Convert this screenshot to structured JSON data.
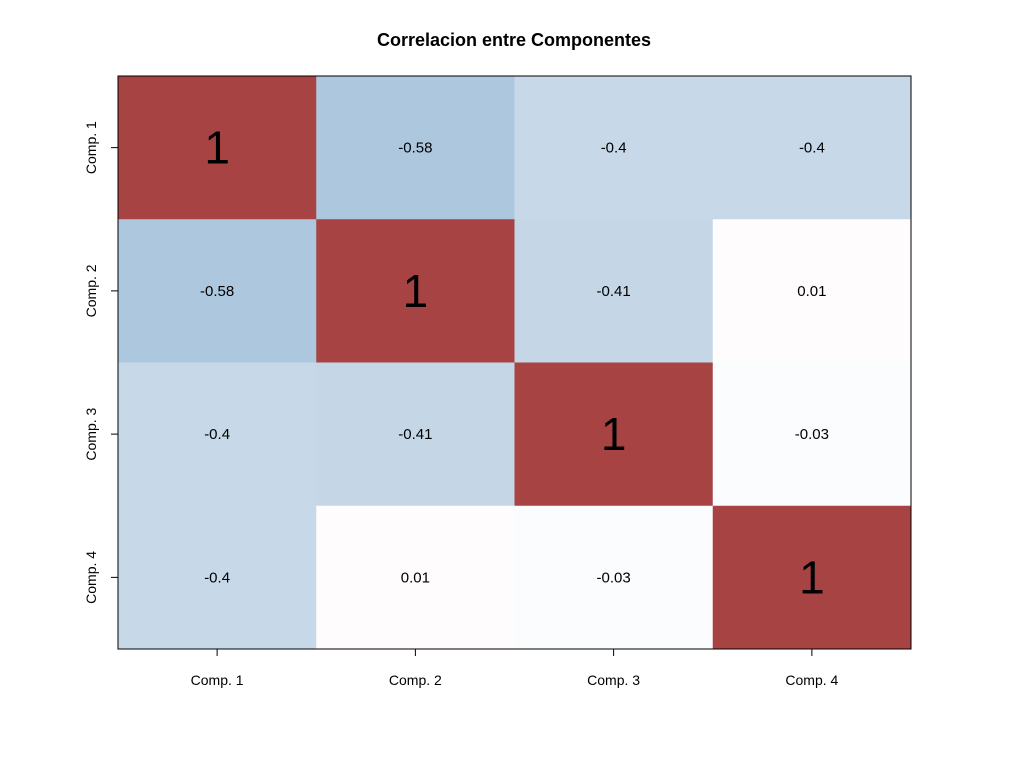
{
  "chart_data": {
    "type": "heatmap",
    "title": "Correlacion entre Componentes",
    "xlabel": "",
    "ylabel": "",
    "rows": [
      "Comp. 1",
      "Comp. 2",
      "Comp. 3",
      "Comp. 4"
    ],
    "columns": [
      "Comp. 1",
      "Comp. 2",
      "Comp. 3",
      "Comp. 4"
    ],
    "values": [
      [
        1,
        -0.58,
        -0.4,
        -0.4
      ],
      [
        -0.58,
        1,
        -0.41,
        0.01
      ],
      [
        -0.4,
        -0.41,
        1,
        -0.03
      ],
      [
        -0.4,
        0.01,
        -0.03,
        1
      ]
    ],
    "cell_labels": [
      [
        "1",
        "-0.58",
        "-0.4",
        "-0.4"
      ],
      [
        "-0.58",
        "1",
        "-0.41",
        "0.01"
      ],
      [
        "-0.4",
        "-0.41",
        "1",
        "-0.03"
      ],
      [
        "-0.4",
        "0.01",
        "-0.03",
        "1"
      ]
    ],
    "legend": "none",
    "grid": false,
    "colors": {
      "positive_strong": "#a84343",
      "negative_strong": "#9fbdd8",
      "neutral": "#ffffff",
      "text": "#000000",
      "axis": "#000000"
    }
  }
}
